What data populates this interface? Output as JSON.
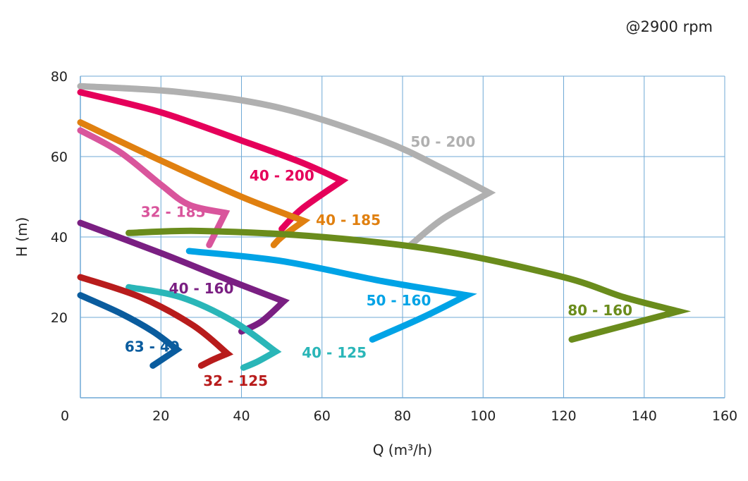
{
  "header": {
    "rpm_note": "@2900 rpm"
  },
  "chart_data": {
    "type": "line",
    "title": "",
    "xlabel": "Q (m³/h)",
    "ylabel": "H (m)",
    "xlim": [
      0,
      160
    ],
    "ylim": [
      0,
      80
    ],
    "xticks": [
      0,
      20,
      40,
      60,
      80,
      100,
      120,
      140,
      160
    ],
    "yticks": [
      20,
      40,
      60,
      80
    ],
    "grid": true,
    "grid_color": "#6fa9d6",
    "series": [
      {
        "name": "50 - 200",
        "color": "#b0b0b0",
        "points": [
          [
            0,
            77.5
          ],
          [
            25,
            76
          ],
          [
            50,
            72
          ],
          [
            75,
            64
          ],
          [
            90,
            57
          ],
          [
            101.5,
            51
          ],
          [
            90,
            44.5
          ],
          [
            82,
            38
          ]
        ],
        "label_at": [
          82,
          62.5
        ]
      },
      {
        "name": "40 - 200",
        "color": "#e5005a",
        "points": [
          [
            0,
            76
          ],
          [
            20,
            71
          ],
          [
            40,
            64
          ],
          [
            55,
            58.5
          ],
          [
            65,
            54
          ],
          [
            55,
            47
          ],
          [
            50,
            42
          ]
        ],
        "label_at": [
          42,
          54
        ]
      },
      {
        "name": "40 - 185",
        "color": "#e08010",
        "points": [
          [
            0,
            68.5
          ],
          [
            20,
            59
          ],
          [
            40,
            50
          ],
          [
            55.5,
            44
          ],
          [
            50,
            40
          ],
          [
            48,
            38
          ]
        ],
        "label_at": [
          58.5,
          43
        ]
      },
      {
        "name": "32 - 185",
        "color": "#d9559c",
        "points": [
          [
            0,
            66.5
          ],
          [
            10,
            61
          ],
          [
            20,
            53
          ],
          [
            27,
            48
          ],
          [
            36,
            46
          ],
          [
            32,
            38
          ]
        ],
        "label_at": [
          15,
          45
        ]
      },
      {
        "name": "40 - 160",
        "color": "#7a1f82",
        "points": [
          [
            0,
            43.5
          ],
          [
            20,
            36
          ],
          [
            35,
            30
          ],
          [
            50.5,
            24
          ],
          [
            45,
            19
          ],
          [
            40,
            16.5
          ]
        ],
        "label_at": [
          22,
          26
        ]
      },
      {
        "name": "80 - 160",
        "color": "#6a8c1c",
        "points": [
          [
            12,
            41
          ],
          [
            30,
            41.5
          ],
          [
            60,
            40
          ],
          [
            90,
            36.5
          ],
          [
            120,
            30
          ],
          [
            135,
            25
          ],
          [
            148.5,
            21.5
          ],
          [
            122,
            14.5
          ]
        ],
        "label_at": [
          121,
          20.5
        ]
      },
      {
        "name": "50 - 160",
        "color": "#00a3e6",
        "points": [
          [
            27,
            36.5
          ],
          [
            50,
            34
          ],
          [
            75,
            29
          ],
          [
            96,
            25.5
          ],
          [
            85,
            20
          ],
          [
            72.5,
            14.5
          ]
        ],
        "label_at": [
          71,
          23
        ]
      },
      {
        "name": "40 - 125",
        "color": "#2ab6b8",
        "points": [
          [
            12,
            27.5
          ],
          [
            25,
            25
          ],
          [
            38,
            19
          ],
          [
            48.5,
            11.5
          ],
          [
            44,
            9
          ],
          [
            40.5,
            7.5
          ]
        ],
        "label_at": [
          55,
          10
        ]
      },
      {
        "name": "32 - 125",
        "color": "#b81c1c",
        "points": [
          [
            0,
            30
          ],
          [
            15,
            25
          ],
          [
            28,
            18
          ],
          [
            36.5,
            11
          ],
          [
            33,
            9.5
          ],
          [
            30,
            8
          ]
        ],
        "label_at": [
          30.5,
          3
        ]
      },
      {
        "name": "63 - 40",
        "color": "#0a5c9e",
        "points": [
          [
            0,
            25.5
          ],
          [
            10,
            21
          ],
          [
            18,
            16.5
          ],
          [
            24,
            12
          ],
          [
            21,
            10
          ],
          [
            18,
            8
          ]
        ],
        "label_at": [
          11,
          11.5
        ]
      }
    ]
  }
}
